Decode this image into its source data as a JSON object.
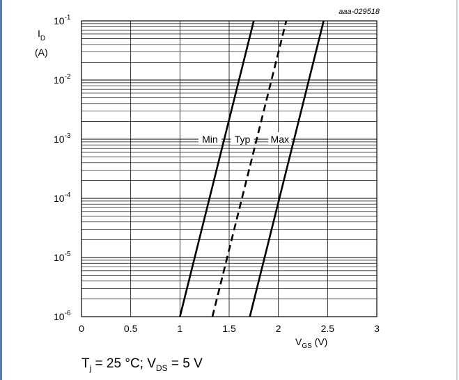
{
  "chart_data": {
    "type": "line",
    "reference_id": "aaa-029518",
    "ylabel": "I",
    "ylabel_sub": "D",
    "ylabel_unit": "(A)",
    "xlabel": "V",
    "xlabel_sub": "GS",
    "xlabel_unit": "(V)",
    "x_ticks": [
      "0",
      "0.5",
      "1",
      "1.5",
      "2",
      "2.5",
      "3"
    ],
    "y_ticks": [
      {
        "base": "10",
        "exp": "-6"
      },
      {
        "base": "10",
        "exp": "-5"
      },
      {
        "base": "10",
        "exp": "-4"
      },
      {
        "base": "10",
        "exp": "-3"
      },
      {
        "base": "10",
        "exp": "-2"
      },
      {
        "base": "10",
        "exp": "-1"
      }
    ],
    "xlim": [
      0,
      3
    ],
    "ylim": [
      1e-06,
      0.1
    ],
    "yscale": "log",
    "grid": true,
    "series": [
      {
        "name": "Min",
        "style": "solid",
        "x": [
          1.0,
          1.75
        ],
        "y": [
          1e-06,
          0.1
        ],
        "label_at_y": 0.001
      },
      {
        "name": "Typ",
        "style": "dashed",
        "x": [
          1.33,
          2.08
        ],
        "y": [
          1e-06,
          0.1
        ],
        "label_at_y": 0.001
      },
      {
        "name": "Max",
        "style": "solid",
        "x": [
          1.71,
          2.46
        ],
        "y": [
          1e-06,
          0.1
        ],
        "label_at_y": 0.001
      }
    ]
  },
  "caption": {
    "t_main": "T",
    "t_sub": "j",
    "t_rest": " = 25 °C; V",
    "v_sub": "DS",
    "v_rest": " = 5 V"
  }
}
